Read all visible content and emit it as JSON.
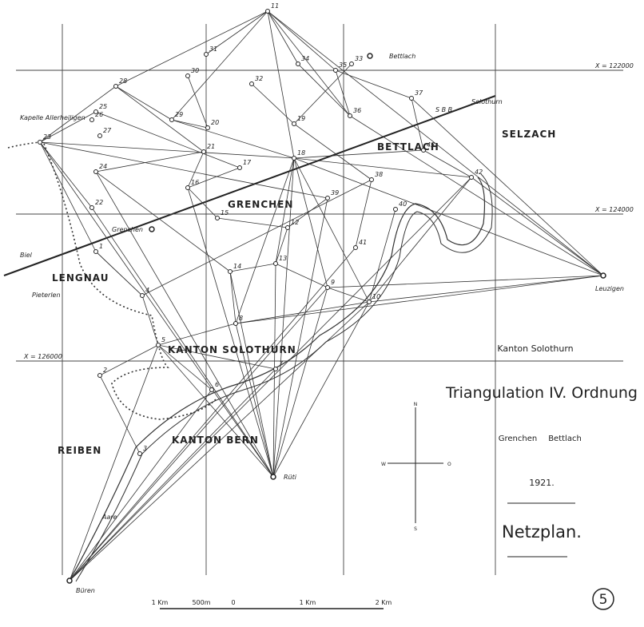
{
  "legend": {
    "canton": "Kanton Solothurn",
    "title": "Triangulation IV. Ordnung",
    "places": [
      "Grenchen",
      "Bettlach"
    ],
    "year": "1921.",
    "subtitle": "Netzplan.",
    "sheet": "5"
  },
  "regions": [
    "LENGNAU",
    "GRENCHEN",
    "BETTLACH",
    "SELZACH",
    "REIBEN",
    "KANTON SOLOTHURN",
    "KANTON BERN"
  ],
  "places": [
    "Kapelle Allerheiligen",
    "Grenchen",
    "Bettlach",
    "Leuzigen",
    "Büren",
    "Rüti",
    "Pieterlen",
    "Biel",
    "Solothurn",
    "S B B",
    "Aare"
  ],
  "points": [
    "11",
    "28",
    "31",
    "30",
    "32",
    "34",
    "35",
    "33",
    "37",
    "36",
    "19",
    "18",
    "23",
    "26",
    "25",
    "27",
    "24",
    "22",
    "1",
    "29",
    "20",
    "21",
    "16",
    "15",
    "17",
    "12",
    "13",
    "14",
    "9",
    "10",
    "8",
    "5",
    "7",
    "6",
    "2",
    "3",
    "4",
    "39",
    "38",
    "40",
    "41",
    "42",
    "43"
  ],
  "grid_labels": [
    "X = 122000",
    "X = 124000",
    "X = 126000"
  ],
  "compass": [
    "N",
    "O",
    "S",
    "W"
  ],
  "scale": [
    "1 Km",
    "500m",
    "0",
    "1 Km",
    "2 Km"
  ]
}
